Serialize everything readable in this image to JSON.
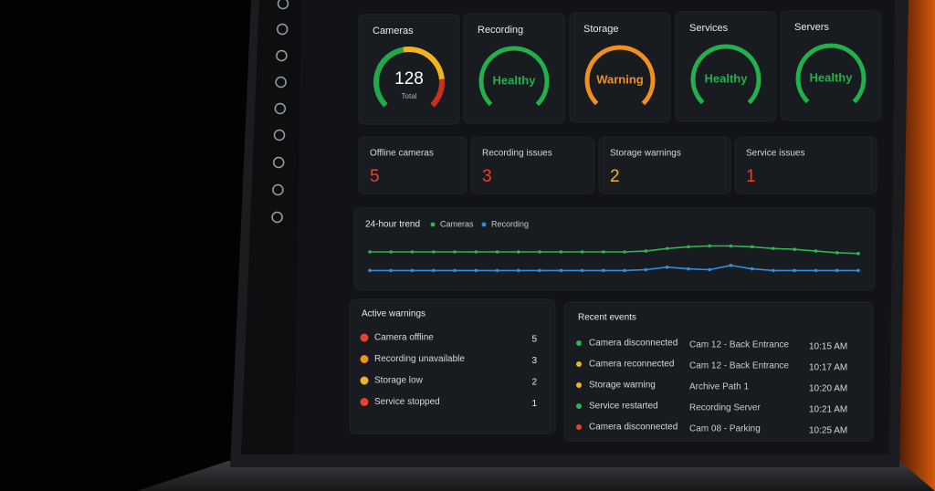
{
  "gauges": [
    {
      "title": "Cameras",
      "center": "128",
      "caption": "Total",
      "arc_colors": [
        "#21a84a",
        "#f2b321",
        "#c7321f"
      ]
    },
    {
      "title": "Recording",
      "status": "Healthy",
      "color": "#22b04b"
    },
    {
      "title": "Storage",
      "status": "Warning",
      "color": "#f0901e"
    },
    {
      "title": "Services",
      "status": "Healthy",
      "color": "#22b04b"
    },
    {
      "title": "Servers",
      "status": "Healthy",
      "color": "#22b04b"
    }
  ],
  "summary": [
    {
      "label": "Offline cameras",
      "value": 5,
      "color": "#e8412d"
    },
    {
      "label": "Recording issues",
      "value": 3,
      "color": "#e8412d"
    },
    {
      "label": "Storage warnings",
      "value": 2,
      "color": "#f2b321"
    },
    {
      "label": "Service issues",
      "value": 1,
      "color": "#e8412d"
    }
  ],
  "trend": {
    "type": "line",
    "title": "24-hour trend",
    "ylim": [
      20,
      90
    ],
    "series": [
      {
        "name": "Cameras",
        "color": "#2fb54f",
        "values": [
          62,
          62,
          62,
          62,
          62,
          62,
          62,
          62,
          62,
          62,
          62,
          62,
          62,
          63,
          66,
          68,
          69,
          69,
          68,
          66,
          65,
          63,
          61,
          60
        ]
      },
      {
        "name": "Recording",
        "color": "#2e8fe0",
        "values": [
          40,
          40,
          40,
          40,
          40,
          40,
          40,
          40,
          40,
          40,
          40,
          40,
          40,
          41,
          44,
          42,
          41,
          46,
          42,
          40,
          40,
          40,
          40,
          40
        ]
      }
    ]
  },
  "warnings": {
    "title": "Active warnings",
    "items": [
      {
        "label": "Camera offline",
        "count": 5,
        "color": "#e8412d"
      },
      {
        "label": "Recording unavailable",
        "count": 3,
        "color": "#f0901e"
      },
      {
        "label": "Storage low",
        "count": 2,
        "color": "#f2b321"
      },
      {
        "label": "Service stopped",
        "count": 1,
        "color": "#e8412d"
      }
    ]
  },
  "events": {
    "title": "Recent events",
    "rows": [
      {
        "event": "Camera disconnected",
        "source": "Cam 12 - Back Entrance",
        "time": "10:15 AM",
        "color": "#2fb54f"
      },
      {
        "event": "Camera reconnected",
        "source": "Cam 12 - Back Entrance",
        "time": "10:17 AM",
        "color": "#f2b321"
      },
      {
        "event": "Storage warning",
        "source": "Archive Path 1",
        "time": "10:20 AM",
        "color": "#f2b321"
      },
      {
        "event": "Service restarted",
        "source": "Recording Server",
        "time": "10:21 AM",
        "color": "#2fb54f"
      },
      {
        "event": "Camera disconnected",
        "source": "Cam 08 - Parking",
        "time": "10:25 AM",
        "color": "#e8412d"
      }
    ]
  }
}
